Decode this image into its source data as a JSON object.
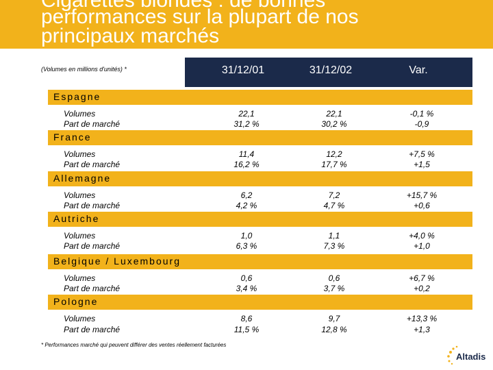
{
  "title": {
    "line1": "Cigarettes blondes : de bonnes",
    "line2": "performances sur la plupart de nos",
    "line3": "principaux marchés"
  },
  "table": {
    "units_note": "(Volumes en millions d'unités) *",
    "columns": [
      "31/12/01",
      "31/12/02",
      "Var."
    ],
    "row_labels": [
      "Volumes",
      "Part de marché"
    ],
    "countries": [
      {
        "name": "Espagne",
        "volumes": [
          "22,1",
          "22,1",
          "-0,1 %"
        ],
        "share": [
          "31,2 %",
          "30,2 %",
          "-0,9"
        ]
      },
      {
        "name": "France",
        "volumes": [
          "11,4",
          "12,2",
          "+7,5 %"
        ],
        "share": [
          "16,2 %",
          "17,7 %",
          "+1,5"
        ]
      },
      {
        "name": "Allemagne",
        "volumes": [
          "6,2",
          "7,2",
          "+15,7 %"
        ],
        "share": [
          "4,2 %",
          "4,7 %",
          "+0,6"
        ]
      },
      {
        "name": "Autriche",
        "volumes": [
          "1,0",
          "1,1",
          "+4,0 %"
        ],
        "share": [
          "6,3 %",
          "7,3 %",
          "+1,0"
        ]
      },
      {
        "name": "Belgique / Luxembourg",
        "volumes": [
          "0,6",
          "0,6",
          "+6,7 %"
        ],
        "share": [
          "3,4 %",
          "3,7 %",
          "+0,2"
        ]
      },
      {
        "name": "Pologne",
        "volumes": [
          "8,6",
          "9,7",
          "+13,3 %"
        ],
        "share": [
          "11,5 %",
          "12,8 %",
          "+1,3"
        ]
      }
    ]
  },
  "footnote": "* Performances marché qui peuvent différer des ventes réellement facturées",
  "logo": {
    "text": "Altadis"
  },
  "colors": {
    "accent": "#f2b21b",
    "header": "#1b2a4a"
  }
}
